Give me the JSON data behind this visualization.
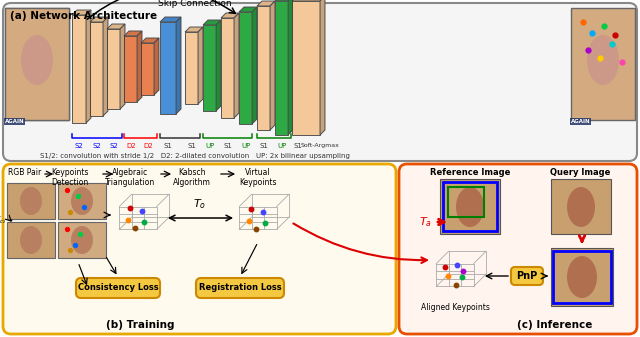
{
  "title_a": "(a) Network Architecture",
  "title_b": "(b) Training",
  "title_c": "(c) Inference",
  "skip_connection_label": "Skip Connection",
  "legend_text": "S1/2: convolution with stride 1/2   D2: 2-dilated convolution   UP: 2x bilinear upsampling",
  "flow_labels_b": [
    "RGB Pair",
    "Keypoints\nDetection",
    "Algebraic\nTriangulation",
    "Kabsch\nAlgorithm",
    "Virtual\nKeypoints"
  ],
  "loss_labels": [
    "Consistency Loss",
    "Registration Loss"
  ],
  "inference_labels": [
    "Reference Image",
    "Query Image",
    "Aligned Keypoints"
  ],
  "T_o_label": "T_o",
  "T_a_label": "T_a",
  "PnP_label": "PnP",
  "bg_color_a": "#f5f5f5",
  "bg_color_b": "#fffaee",
  "bg_color_c": "#fff5ee",
  "border_color_a": "#888888",
  "border_color_b": "#e8a800",
  "border_color_c": "#e85000",
  "block_blue": "#4a90d9",
  "block_green": "#2eaa44",
  "block_peach": "#f5c89a",
  "block_orange": "#e88050",
  "loss_yellow": "#f5c842",
  "pnp_color": "#f5c842",
  "arrow_red": "#dd0000",
  "figsize": [
    6.4,
    3.37
  ],
  "dpi": 100
}
